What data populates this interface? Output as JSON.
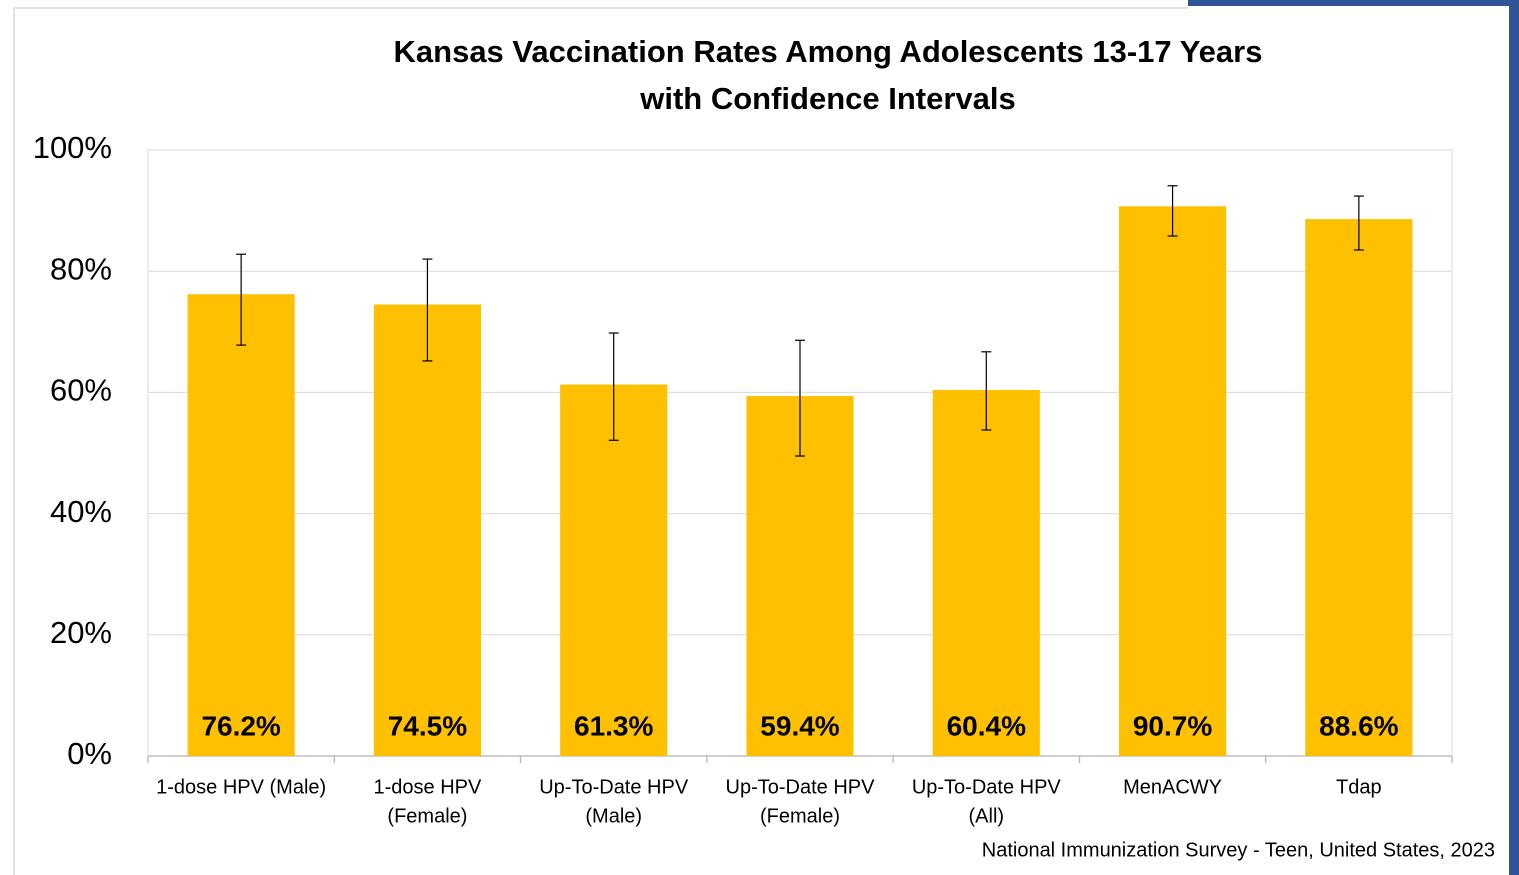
{
  "chart_data": {
    "type": "bar",
    "title": [
      "Kansas Vaccination Rates Among Adolescents 13-17 Years",
      "with Confidence Intervals"
    ],
    "categories": [
      [
        "1-dose HPV (Male)"
      ],
      [
        "1-dose HPV",
        "(Female)"
      ],
      [
        "Up-To-Date HPV",
        "(Male)"
      ],
      [
        "Up-To-Date HPV",
        "(Female)"
      ],
      [
        "Up-To-Date HPV",
        "(All)"
      ],
      [
        "MenACWY"
      ],
      [
        "Tdap"
      ]
    ],
    "values": [
      76.2,
      74.5,
      61.3,
      59.4,
      60.4,
      90.7,
      88.6
    ],
    "value_labels": [
      "76.2%",
      "74.5%",
      "61.3%",
      "59.4%",
      "60.4%",
      "90.7%",
      "88.6%"
    ],
    "ci_low": [
      67.8,
      65.2,
      52.1,
      49.5,
      53.8,
      85.8,
      83.5
    ],
    "ci_high": [
      82.8,
      82.0,
      69.8,
      68.6,
      66.7,
      94.1,
      92.4
    ],
    "color": "#ffc000",
    "ylim": [
      0,
      100
    ],
    "yticks": [
      {
        "value": 0,
        "label": "0%"
      },
      {
        "value": 20,
        "label": "20%"
      },
      {
        "value": 40,
        "label": "40%"
      },
      {
        "value": 60,
        "label": "60%"
      },
      {
        "value": 80,
        "label": "80%"
      },
      {
        "value": 100,
        "label": "100%"
      }
    ],
    "grid": true,
    "source": "National Immunization Survey - Teen, United States, 2023"
  }
}
